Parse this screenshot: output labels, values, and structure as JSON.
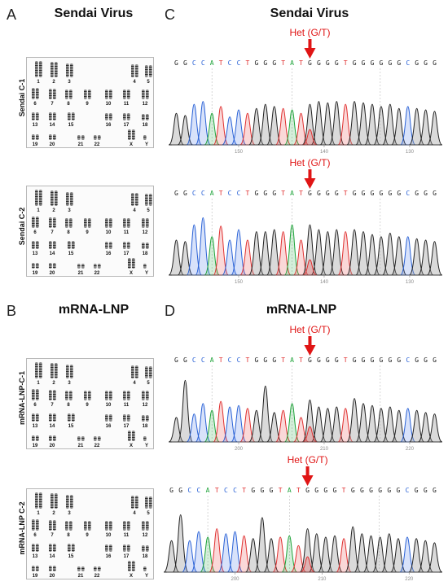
{
  "panels": {
    "A": {
      "letter": "A",
      "title": "Sendai Virus",
      "karyotypes": [
        {
          "label": "Sendai C-1"
        },
        {
          "label": "Sendai C-2"
        }
      ]
    },
    "B": {
      "letter": "B",
      "title": "mRNA-LNP",
      "karyotypes": [
        {
          "label": "mRNA-LNP-C-1"
        },
        {
          "label": "mRNA-LNP C-2"
        }
      ]
    },
    "C": {
      "letter": "C",
      "title": "Sendai Virus"
    },
    "D": {
      "letter": "D",
      "title": "mRNA-LNP"
    }
  },
  "chromosome_rows": [
    [
      "1",
      "2",
      "3",
      "4",
      "5"
    ],
    [
      "6",
      "7",
      "8",
      "9",
      "10",
      "11",
      "12"
    ],
    [
      "13",
      "14",
      "15",
      "16",
      "17",
      "18"
    ],
    [
      "19",
      "20",
      "21",
      "22",
      "X",
      "Y"
    ]
  ],
  "sequence": "GGCCATCCTGGGTATGGGGTGGGGGGCGGG",
  "base_colors": {
    "G": "#222222",
    "C": "#2a62d6",
    "A": "#1fa33a",
    "T": "#e03030"
  },
  "het_label": "Het (G/T)",
  "chromatograms": [
    {
      "panel": "C",
      "ticks": [
        "150",
        "140",
        "130"
      ]
    },
    {
      "panel": "C",
      "ticks": [
        "150",
        "140",
        "130"
      ]
    },
    {
      "panel": "D",
      "ticks": [
        "200",
        "210",
        "220"
      ]
    },
    {
      "panel": "D",
      "ticks": [
        "200",
        "210",
        "220"
      ]
    }
  ]
}
